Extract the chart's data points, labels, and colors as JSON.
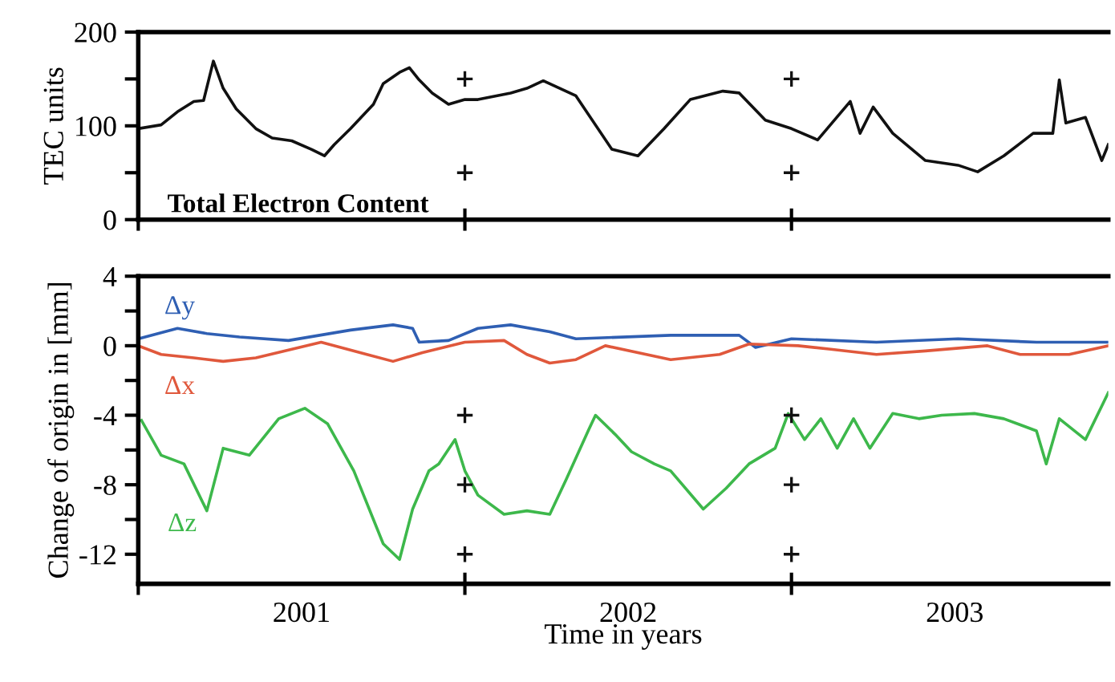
{
  "chart_data": [
    {
      "type": "line",
      "ylabel": "TEC units",
      "annotations": [
        "Total Electron Content"
      ],
      "xlim": [
        2001,
        2003.97
      ],
      "xticks": [
        {
          "value": 2001,
          "label": null
        },
        {
          "value": 2002,
          "label": null
        },
        {
          "value": 2003,
          "label": null
        }
      ],
      "ylim": [
        0,
        200
      ],
      "yticks": [
        0,
        {
          "value": 50,
          "label": null
        },
        100,
        {
          "value": 150,
          "label": null
        },
        200
      ],
      "tick_labels": "y",
      "grid": false,
      "legend": false,
      "series": [
        {
          "color": "#111111",
          "x": [
            2001.0,
            2001.07,
            2001.12,
            2001.17,
            2001.2,
            2001.23,
            2001.26,
            2001.3,
            2001.36,
            2001.41,
            2001.47,
            2001.53,
            2001.57,
            2001.6,
            2001.65,
            2001.72,
            2001.75,
            2001.8,
            2001.83,
            2001.86,
            2001.9,
            2001.95,
            2002.0,
            2002.04,
            2002.14,
            2002.19,
            2002.24,
            2002.34,
            2002.45,
            2002.53,
            2002.61,
            2002.69,
            2002.79,
            2002.84,
            2002.92,
            2003.0,
            2003.08,
            2003.18,
            2003.21,
            2003.25,
            2003.31,
            2003.41,
            2003.51,
            2003.57,
            2003.65,
            2003.74,
            2003.8,
            2003.82,
            2003.84,
            2003.9,
            2003.95,
            2003.97
          ],
          "values": [
            97,
            101,
            115,
            126,
            127,
            169,
            140,
            118,
            97,
            87,
            84,
            75,
            68,
            80,
            97,
            123,
            145,
            157,
            162,
            149,
            135,
            123,
            128,
            128,
            135,
            140,
            148,
            132,
            75,
            68,
            97,
            128,
            137,
            135,
            106,
            97,
            85,
            126,
            92,
            120,
            92,
            63,
            58,
            51,
            68,
            92,
            92,
            149,
            103,
            109,
            63,
            80
          ]
        },
        {
          "type": "scatter",
          "marker": "cross",
          "color": "#111111",
          "x": [
            2002,
            2002,
            2003,
            2003
          ],
          "values": [
            150,
            50,
            150,
            50
          ]
        }
      ]
    },
    {
      "type": "line",
      "ylabel": "Change of origin in [mm]",
      "xlabel": "Time in years",
      "xlim": [
        2001,
        2003.97
      ],
      "xticks": [
        {
          "value": 2001,
          "label": null
        },
        {
          "value": 2002,
          "label": null
        },
        {
          "value": 2003,
          "label": null
        },
        {
          "value": 2001.5,
          "label": "2001"
        },
        {
          "value": 2002.5,
          "label": "2002"
        },
        {
          "value": 2003.5,
          "label": "2003"
        }
      ],
      "ylim": [
        -13.7,
        4
      ],
      "yticks": [
        -12,
        {
          "value": -10,
          "label": null
        },
        -8,
        {
          "value": -6,
          "label": null
        },
        -4,
        {
          "value": -2,
          "label": null
        },
        0,
        {
          "value": 2,
          "label": null
        },
        4
      ],
      "grid": false,
      "legend": false,
      "series": [
        {
          "name": "Δy",
          "color": "#2f5fb3",
          "x": [
            2001.0,
            2001.12,
            2001.21,
            2001.31,
            2001.46,
            2001.65,
            2001.78,
            2001.84,
            2001.86,
            2001.95,
            2002.04,
            2002.14,
            2002.26,
            2002.34,
            2002.63,
            2002.84,
            2002.89,
            2003.0,
            2003.26,
            2003.51,
            2003.75,
            2003.97
          ],
          "values": [
            0.4,
            1.0,
            0.7,
            0.5,
            0.3,
            0.9,
            1.2,
            1.0,
            0.2,
            0.3,
            1.0,
            1.2,
            0.8,
            0.4,
            0.6,
            0.6,
            -0.1,
            0.4,
            0.2,
            0.4,
            0.2,
            0.2
          ]
        },
        {
          "name": "Δx",
          "color": "#e0583c",
          "x": [
            2001.0,
            2001.07,
            2001.17,
            2001.26,
            2001.36,
            2001.56,
            2001.7,
            2001.78,
            2001.87,
            2002.0,
            2002.12,
            2002.19,
            2002.26,
            2002.34,
            2002.43,
            2002.63,
            2002.78,
            2002.87,
            2003.02,
            2003.12,
            2003.26,
            2003.41,
            2003.6,
            2003.7,
            2003.85,
            2003.97
          ],
          "values": [
            0,
            -0.5,
            -0.7,
            -0.9,
            -0.7,
            0.2,
            -0.5,
            -0.9,
            -0.4,
            0.2,
            0.3,
            -0.5,
            -1.0,
            -0.8,
            0,
            -0.8,
            -0.5,
            0.1,
            0,
            -0.2,
            -0.5,
            -0.3,
            0,
            -0.5,
            -0.5,
            0
          ]
        },
        {
          "name": "Δz",
          "color": "#3db84b",
          "x": [
            2001.01,
            2001.07,
            2001.14,
            2001.21,
            2001.26,
            2001.34,
            2001.43,
            2001.51,
            2001.58,
            2001.66,
            2001.75,
            2001.8,
            2001.84,
            2001.89,
            2001.92,
            2001.97,
            2002.0,
            2002.04,
            2002.12,
            2002.19,
            2002.26,
            2002.31,
            2002.38,
            2002.4,
            2002.46,
            2002.51,
            2002.58,
            2002.63,
            2002.73,
            2002.8,
            2002.87,
            2002.95,
            2002.99,
            2003.04,
            2003.09,
            2003.14,
            2003.19,
            2003.24,
            2003.31,
            2003.39,
            2003.46,
            2003.56,
            2003.65,
            2003.75,
            2003.78,
            2003.82,
            2003.9,
            2003.97
          ],
          "values": [
            -4.3,
            -6.3,
            -6.8,
            -9.5,
            -5.9,
            -6.3,
            -4.2,
            -3.6,
            -4.5,
            -7.2,
            -11.4,
            -12.3,
            -9.4,
            -7.2,
            -6.8,
            -5.4,
            -7.2,
            -8.6,
            -9.7,
            -9.5,
            -9.7,
            -7.7,
            -4.8,
            -4.0,
            -5.1,
            -6.1,
            -6.8,
            -7.2,
            -9.4,
            -8.2,
            -6.8,
            -5.9,
            -3.9,
            -5.4,
            -4.2,
            -5.9,
            -4.2,
            -5.9,
            -3.9,
            -4.2,
            -4.0,
            -3.9,
            -4.2,
            -4.9,
            -6.8,
            -4.2,
            -5.4,
            -2.7
          ]
        },
        {
          "type": "scatter",
          "marker": "cross",
          "color": "#111111",
          "x": [
            2002,
            2002,
            2002,
            2003,
            2003,
            2003
          ],
          "values": [
            -4,
            -8,
            -12,
            -4,
            -8,
            -12
          ]
        }
      ]
    }
  ]
}
